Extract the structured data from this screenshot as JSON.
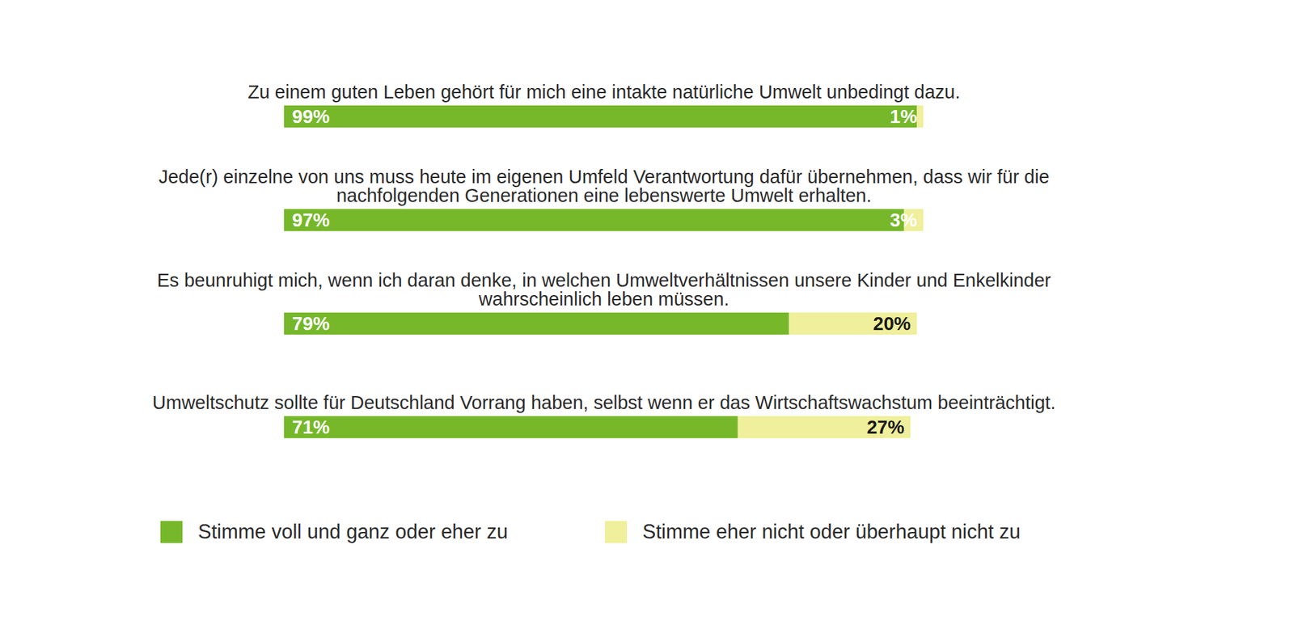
{
  "chart_data": {
    "type": "bar",
    "orientation": "horizontal",
    "stacked": true,
    "data_labels": true,
    "tick_labels": false,
    "categories": [
      "Zu einem guten Leben gehört für mich eine intakte natürliche Umwelt unbedingt dazu.",
      "Jede(r) einzelne von uns muss heute im eigenen Umfeld Verantwortung dafür übernehmen, dass wir für die nachfolgenden Generationen eine lebenswerte Umwelt erhalten.",
      "Es beunruhigt mich, wenn ich daran denke, in welchen Umweltverhältnissen unsere Kinder und Enkelkinder wahrscheinlich leben müssen.",
      "Umweltschutz sollte für Deutschland Vorrang haben, selbst wenn er das Wirtschaftswachstum beeinträchtigt."
    ],
    "xlim": [
      0,
      100
    ],
    "series": [
      {
        "name": "Stimme voll und ganz oder eher zu",
        "color": "#76b82a",
        "values": [
          99,
          97,
          79,
          71
        ],
        "value_labels": [
          "99%",
          "97%",
          "79%",
          "71%"
        ]
      },
      {
        "name": "Stimme eher nicht oder überhaupt nicht zu",
        "color": "#efef9c",
        "values": [
          1,
          3,
          20,
          27
        ],
        "value_labels": [
          "1%",
          "3%",
          "20%",
          "27%"
        ]
      }
    ]
  }
}
